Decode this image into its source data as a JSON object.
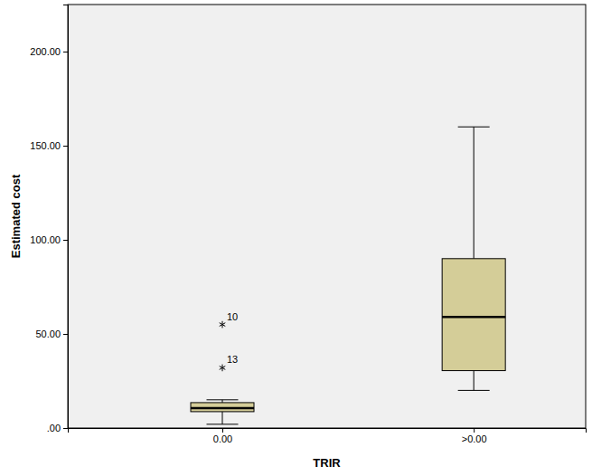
{
  "chart_data": {
    "type": "box",
    "x_label": "TRIR",
    "y_label": "Estimated cost",
    "categories": [
      "0.00",
      ">0.00"
    ],
    "color": "#d4cd98",
    "marker": "asterisk",
    "boxes": [
      {
        "whisker_low": 2,
        "q1": 8.7,
        "median": 10.6,
        "q3": 13.5,
        "whisker_high": 15,
        "outliers": [
          55,
          32
        ],
        "outlier_labels": [
          "10",
          "13"
        ]
      },
      {
        "whisker_low": 20,
        "q1": 30.5,
        "median": 59,
        "q3": 90,
        "whisker_high": 160,
        "outliers": [],
        "outlier_labels": []
      }
    ],
    "ylim": [
      0,
      225
    ],
    "yticks": [
      {
        "value": 0,
        "label": ".00"
      },
      {
        "value": 50,
        "label": "50.00"
      },
      {
        "value": 100,
        "label": "100.00"
      },
      {
        "value": 150,
        "label": "150.00"
      },
      {
        "value": 200,
        "label": "200.00"
      }
    ]
  }
}
